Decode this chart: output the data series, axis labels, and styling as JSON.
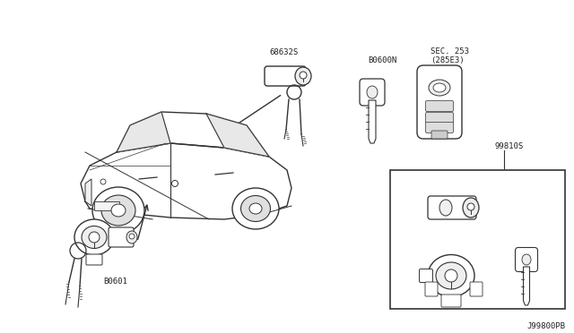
{
  "bg_color": "#ffffff",
  "line_color": "#333333",
  "text_color": "#222222",
  "labels": {
    "top_lock": "68632S",
    "bottom_lock": "B0601",
    "blank_key": "B0600N",
    "smart_key": "SEC. 253\n(285E3)",
    "keyset": "99810S",
    "part_num": "J99800PB"
  }
}
